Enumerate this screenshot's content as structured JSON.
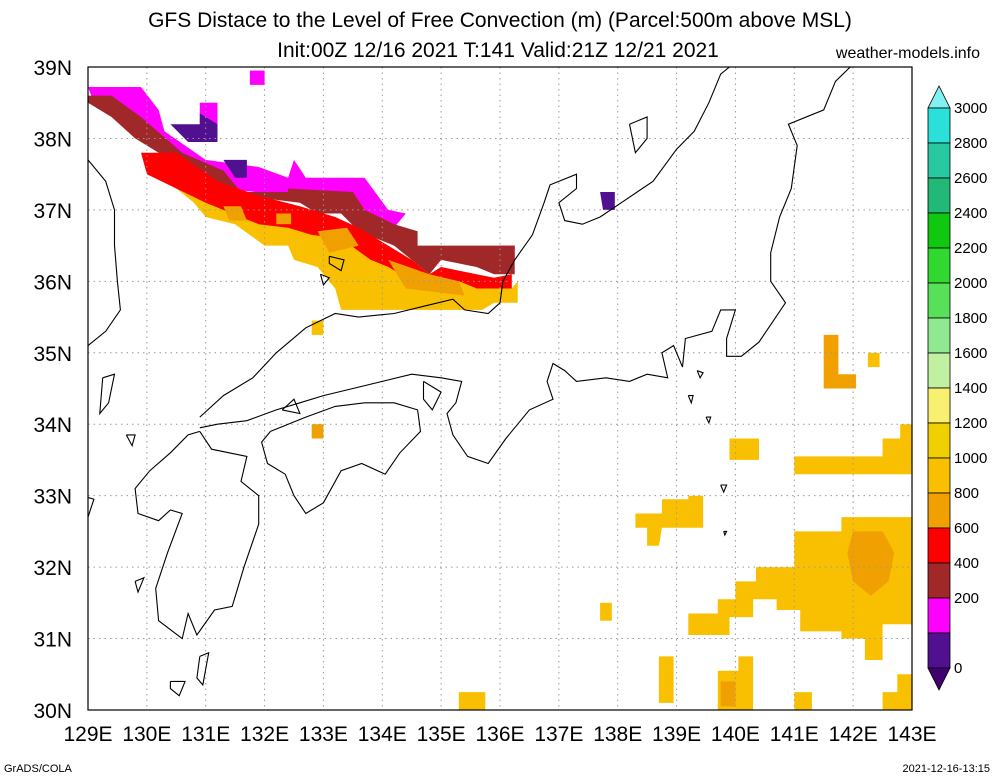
{
  "header": {
    "title": "GFS Distace to the Level of Free Convection (m) (Parcel:500m above MSL)",
    "subtitle": "Init:00Z 12/16 2021 T:141 Valid:21Z 12/21 2021",
    "source": "weather-models.info"
  },
  "footer": {
    "left": "GrADS/COLA",
    "right": "2021-12-16-13:15"
  },
  "axes": {
    "lon_range": [
      129,
      143
    ],
    "lat_range": [
      30,
      39
    ],
    "lon_ticks": [
      "129E",
      "130E",
      "131E",
      "132E",
      "133E",
      "134E",
      "135E",
      "136E",
      "137E",
      "138E",
      "139E",
      "140E",
      "141E",
      "142E",
      "143E"
    ],
    "lat_ticks": [
      "30N",
      "31N",
      "32N",
      "33N",
      "34N",
      "35N",
      "36N",
      "37N",
      "38N",
      "39N"
    ],
    "grid": "dotted"
  },
  "colorbar": {
    "labels": [
      "3000",
      "2800",
      "2600",
      "2400",
      "2200",
      "2000",
      "1800",
      "1600",
      "1400",
      "1200",
      "1000",
      "800",
      "600",
      "400",
      "200",
      "0"
    ],
    "colors": [
      "#2ae0d8",
      "#28c8a0",
      "#22b878",
      "#10c810",
      "#30d830",
      "#58e058",
      "#90e890",
      "#c0f0a0",
      "#f8f070",
      "#f0d000",
      "#f8c000",
      "#f0a000",
      "#ff0000",
      "#a02828",
      "#ff00ff",
      "#501090"
    ],
    "top_arrow_color": "#80f0f0",
    "bottom_arrow_color": "#400070"
  },
  "map_data": {
    "fill_colors": {
      "magenta": "#ff00ff",
      "purple": "#501090",
      "brown": "#a02828",
      "red": "#ff0000",
      "orange": "#f0a000",
      "yellow": "#f8c000"
    },
    "regions": [
      {
        "color": "magenta",
        "points": [
          [
            129,
            38.72
          ],
          [
            129.9,
            38.72
          ],
          [
            130.2,
            38.4
          ],
          [
            130.3,
            38.1
          ],
          [
            131,
            37.7
          ],
          [
            131.9,
            37.6
          ],
          [
            132.4,
            37.45
          ],
          [
            132.5,
            37.7
          ],
          [
            132.7,
            37.45
          ],
          [
            133.7,
            37.45
          ],
          [
            134.1,
            37.0
          ],
          [
            134.4,
            36.95
          ],
          [
            134.2,
            36.75
          ],
          [
            133.4,
            37.1
          ],
          [
            132.4,
            37.2
          ],
          [
            131.3,
            37.3
          ],
          [
            130.6,
            37.8
          ],
          [
            129.8,
            38.1
          ],
          [
            129.1,
            38.5
          ]
        ]
      },
      {
        "color": "magenta",
        "points": [
          [
            131.75,
            38.95
          ],
          [
            132.0,
            38.95
          ],
          [
            132.0,
            38.75
          ],
          [
            131.75,
            38.75
          ]
        ]
      },
      {
        "color": "magenta",
        "points": [
          [
            130.9,
            38.5
          ],
          [
            131.2,
            38.5
          ],
          [
            131.2,
            38.2
          ],
          [
            130.9,
            38.2
          ]
        ]
      },
      {
        "color": "magenta",
        "points": [
          [
            136.0,
            36.5
          ],
          [
            136.25,
            36.5
          ],
          [
            136.25,
            36.3
          ],
          [
            136.0,
            36.3
          ]
        ]
      },
      {
        "color": "purple",
        "points": [
          [
            130.4,
            38.2
          ],
          [
            130.9,
            38.2
          ],
          [
            130.9,
            38.35
          ],
          [
            131.2,
            38.2
          ],
          [
            131.2,
            37.95
          ],
          [
            130.7,
            37.95
          ]
        ]
      },
      {
        "color": "purple",
        "points": [
          [
            131.3,
            37.7
          ],
          [
            131.7,
            37.7
          ],
          [
            131.7,
            37.45
          ],
          [
            131.5,
            37.45
          ]
        ]
      },
      {
        "color": "purple",
        "points": [
          [
            137.7,
            37.25
          ],
          [
            137.95,
            37.25
          ],
          [
            137.95,
            37.0
          ],
          [
            137.75,
            37.0
          ]
        ]
      },
      {
        "color": "brown",
        "points": [
          [
            129,
            38.6
          ],
          [
            129.4,
            38.6
          ],
          [
            129.9,
            38.3
          ],
          [
            130.6,
            37.8
          ],
          [
            131.3,
            37.55
          ],
          [
            131.6,
            37.25
          ],
          [
            132.4,
            37.25
          ],
          [
            132.4,
            37.3
          ],
          [
            133.5,
            37.25
          ],
          [
            133.7,
            37.0
          ],
          [
            134.2,
            36.8
          ],
          [
            134.6,
            36.7
          ],
          [
            134.6,
            36.5
          ],
          [
            136.25,
            36.5
          ],
          [
            136.25,
            36.1
          ],
          [
            135.9,
            36.1
          ],
          [
            135.6,
            36.2
          ],
          [
            135.0,
            36.3
          ],
          [
            134.8,
            36.1
          ],
          [
            134.5,
            36.3
          ],
          [
            134.2,
            36.5
          ],
          [
            133.6,
            36.7
          ],
          [
            133.3,
            36.95
          ],
          [
            132.9,
            36.95
          ],
          [
            132.6,
            37.1
          ],
          [
            131.6,
            37.2
          ],
          [
            131.2,
            37.35
          ],
          [
            130.7,
            37.6
          ],
          [
            130.2,
            37.8
          ],
          [
            129.8,
            38.0
          ],
          [
            129.4,
            38.3
          ],
          [
            129.0,
            38.5
          ]
        ]
      },
      {
        "color": "red",
        "points": [
          [
            129.9,
            37.8
          ],
          [
            130.5,
            37.8
          ],
          [
            131.2,
            37.4
          ],
          [
            131.9,
            37.2
          ],
          [
            132.6,
            37.05
          ],
          [
            133.2,
            36.9
          ],
          [
            133.6,
            36.75
          ],
          [
            134.1,
            36.5
          ],
          [
            134.5,
            36.3
          ],
          [
            134.8,
            36.1
          ],
          [
            135.0,
            36.2
          ],
          [
            135.6,
            36.1
          ],
          [
            135.9,
            36.05
          ],
          [
            136.2,
            36.1
          ],
          [
            136.2,
            35.9
          ],
          [
            135.6,
            35.9
          ],
          [
            135.3,
            36.0
          ],
          [
            134.9,
            35.9
          ],
          [
            134.5,
            36.0
          ],
          [
            134.1,
            36.2
          ],
          [
            133.8,
            36.3
          ],
          [
            133.3,
            36.6
          ],
          [
            132.8,
            36.6
          ],
          [
            132.4,
            36.7
          ],
          [
            131.9,
            36.7
          ],
          [
            131.3,
            36.85
          ],
          [
            130.9,
            37.1
          ],
          [
            130.5,
            37.3
          ],
          [
            130.0,
            37.5
          ]
        ]
      },
      {
        "color": "yellow",
        "points": [
          [
            130.5,
            37.3
          ],
          [
            131.0,
            37.1
          ],
          [
            131.9,
            36.8
          ],
          [
            132.4,
            36.75
          ],
          [
            132.8,
            36.65
          ],
          [
            133.3,
            36.6
          ],
          [
            133.8,
            36.3
          ],
          [
            134.1,
            36.2
          ],
          [
            134.5,
            36.0
          ],
          [
            134.9,
            35.9
          ],
          [
            135.3,
            36.0
          ],
          [
            135.6,
            35.9
          ],
          [
            136.2,
            35.9
          ],
          [
            136.3,
            36.0
          ],
          [
            136.3,
            35.7
          ],
          [
            135.9,
            35.7
          ],
          [
            135.7,
            35.6
          ],
          [
            135.2,
            35.6
          ],
          [
            134.5,
            35.6
          ],
          [
            133.3,
            35.6
          ],
          [
            133.2,
            35.9
          ],
          [
            132.9,
            36.2
          ],
          [
            132.5,
            36.3
          ],
          [
            132.4,
            36.5
          ],
          [
            132.0,
            36.5
          ],
          [
            131.5,
            36.8
          ],
          [
            131.0,
            36.9
          ],
          [
            130.8,
            37.1
          ]
        ]
      },
      {
        "color": "orange",
        "points": [
          [
            131.3,
            37.05
          ],
          [
            131.6,
            37.05
          ],
          [
            131.7,
            36.85
          ],
          [
            131.4,
            36.85
          ]
        ]
      },
      {
        "color": "orange",
        "points": [
          [
            132.2,
            36.95
          ],
          [
            132.45,
            36.95
          ],
          [
            132.45,
            36.8
          ],
          [
            132.2,
            36.8
          ]
        ]
      },
      {
        "color": "orange",
        "points": [
          [
            132.9,
            36.7
          ],
          [
            133.4,
            36.75
          ],
          [
            133.6,
            36.5
          ],
          [
            133.1,
            36.4
          ]
        ]
      },
      {
        "color": "orange",
        "points": [
          [
            134.1,
            36.3
          ],
          [
            134.8,
            36.1
          ],
          [
            135.3,
            36.0
          ],
          [
            135.4,
            35.8
          ],
          [
            134.4,
            35.9
          ]
        ]
      },
      {
        "color": "yellow",
        "points": [
          [
            132.8,
            35.45
          ],
          [
            133.0,
            35.45
          ],
          [
            133.0,
            35.25
          ],
          [
            132.8,
            35.25
          ]
        ]
      },
      {
        "color": "orange",
        "points": [
          [
            132.8,
            34.0
          ],
          [
            133.0,
            34.0
          ],
          [
            133.0,
            33.8
          ],
          [
            132.8,
            33.8
          ]
        ]
      },
      {
        "color": "orange",
        "points": [
          [
            141.5,
            35.25
          ],
          [
            141.75,
            35.25
          ],
          [
            141.75,
            34.7
          ],
          [
            142.05,
            34.7
          ],
          [
            142.05,
            34.5
          ],
          [
            141.5,
            34.5
          ]
        ]
      },
      {
        "color": "yellow",
        "points": [
          [
            142.25,
            35.0
          ],
          [
            142.45,
            35.0
          ],
          [
            142.45,
            34.8
          ],
          [
            142.25,
            34.8
          ]
        ]
      },
      {
        "color": "yellow",
        "points": [
          [
            139.9,
            33.8
          ],
          [
            140.4,
            33.8
          ],
          [
            140.4,
            33.5
          ],
          [
            139.9,
            33.5
          ]
        ]
      },
      {
        "color": "yellow",
        "points": [
          [
            141.0,
            33.55
          ],
          [
            142.5,
            33.55
          ],
          [
            142.5,
            33.8
          ],
          [
            142.8,
            33.8
          ],
          [
            142.8,
            34.0
          ],
          [
            143,
            34.0
          ],
          [
            143,
            33.3
          ],
          [
            141.0,
            33.3
          ]
        ]
      },
      {
        "color": "yellow",
        "points": [
          [
            138.3,
            32.75
          ],
          [
            138.75,
            32.75
          ],
          [
            138.75,
            32.95
          ],
          [
            139.2,
            32.95
          ],
          [
            139.2,
            33.0
          ],
          [
            139.45,
            33.0
          ],
          [
            139.45,
            32.55
          ],
          [
            138.75,
            32.55
          ],
          [
            138.7,
            32.3
          ],
          [
            138.5,
            32.3
          ],
          [
            138.5,
            32.55
          ],
          [
            138.3,
            32.55
          ]
        ]
      },
      {
        "color": "yellow",
        "points": [
          [
            139.2,
            31.35
          ],
          [
            139.7,
            31.35
          ],
          [
            139.7,
            31.55
          ],
          [
            140.0,
            31.55
          ],
          [
            140.0,
            31.8
          ],
          [
            140.35,
            31.8
          ],
          [
            140.35,
            32.0
          ],
          [
            141.0,
            32.0
          ],
          [
            141.0,
            32.5
          ],
          [
            141.8,
            32.5
          ],
          [
            141.8,
            32.7
          ],
          [
            143,
            32.7
          ],
          [
            143,
            31.2
          ],
          [
            142.5,
            31.2
          ],
          [
            142.5,
            30.7
          ],
          [
            142.2,
            30.7
          ],
          [
            142.2,
            31.0
          ],
          [
            141.8,
            31.0
          ],
          [
            141.8,
            31.1
          ],
          [
            141.1,
            31.1
          ],
          [
            141.1,
            31.4
          ],
          [
            140.7,
            31.4
          ],
          [
            140.7,
            31.55
          ],
          [
            140.3,
            31.55
          ],
          [
            140.3,
            31.3
          ],
          [
            139.9,
            31.3
          ],
          [
            139.9,
            31.05
          ],
          [
            139.2,
            31.05
          ]
        ]
      },
      {
        "color": "orange",
        "points": [
          [
            142.0,
            32.5
          ],
          [
            142.5,
            32.5
          ],
          [
            142.7,
            32.2
          ],
          [
            142.6,
            31.8
          ],
          [
            142.3,
            31.6
          ],
          [
            142.0,
            31.8
          ],
          [
            141.9,
            32.2
          ]
        ]
      },
      {
        "color": "yellow",
        "points": [
          [
            137.7,
            31.5
          ],
          [
            137.9,
            31.5
          ],
          [
            137.9,
            31.25
          ],
          [
            137.7,
            31.25
          ]
        ]
      },
      {
        "color": "yellow",
        "points": [
          [
            138.7,
            30.75
          ],
          [
            138.95,
            30.75
          ],
          [
            138.95,
            30.1
          ],
          [
            138.7,
            30.1
          ]
        ]
      },
      {
        "color": "yellow",
        "points": [
          [
            139.7,
            30.55
          ],
          [
            140.05,
            30.55
          ],
          [
            140.05,
            30.75
          ],
          [
            140.3,
            30.75
          ],
          [
            140.3,
            30.0
          ],
          [
            139.7,
            30.0
          ]
        ]
      },
      {
        "color": "orange",
        "points": [
          [
            139.75,
            30.4
          ],
          [
            140.0,
            30.4
          ],
          [
            140.0,
            30.05
          ],
          [
            139.75,
            30.05
          ]
        ]
      },
      {
        "color": "yellow",
        "points": [
          [
            135.3,
            30.25
          ],
          [
            135.75,
            30.25
          ],
          [
            135.75,
            30.0
          ],
          [
            135.3,
            30.0
          ]
        ]
      },
      {
        "color": "yellow",
        "points": [
          [
            141.0,
            30.25
          ],
          [
            141.3,
            30.25
          ],
          [
            141.3,
            30.0
          ],
          [
            141.0,
            30.0
          ]
        ]
      },
      {
        "color": "yellow",
        "points": [
          [
            142.5,
            30.25
          ],
          [
            142.75,
            30.25
          ],
          [
            142.75,
            30.5
          ],
          [
            143,
            30.5
          ],
          [
            143,
            30.0
          ],
          [
            142.5,
            30.0
          ]
        ]
      }
    ]
  }
}
